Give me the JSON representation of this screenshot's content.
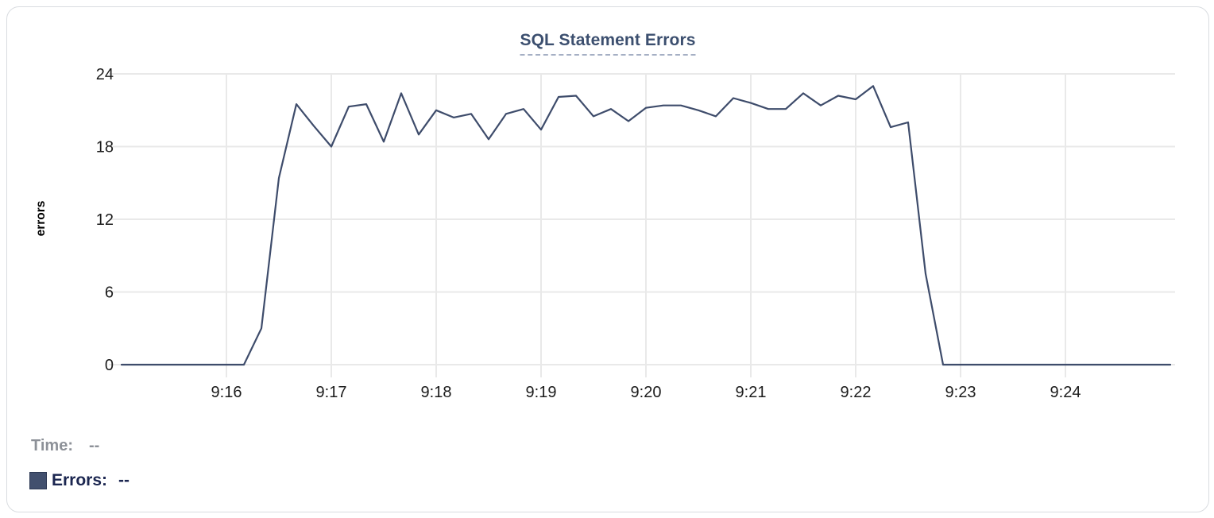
{
  "colors": {
    "line": "#3e4c6b",
    "title": "#3c4f6f",
    "title_dash": "#a5afc4",
    "grid": "#e9e9e9",
    "tick_label": "#1c1c1c",
    "time_label": "#8d9198",
    "errors_label": "#1b2650",
    "swatch": "#42506e",
    "card_border": "#d9dce0"
  },
  "tooltip": {
    "time_label": "Time:",
    "time_value": "--",
    "errors_label": "Errors:",
    "errors_value": "--"
  },
  "chart_data": {
    "type": "line",
    "title": "SQL Statement Errors",
    "xlabel": "",
    "ylabel": "errors",
    "ylim": [
      0,
      24
    ],
    "y_ticks": [
      0,
      6,
      12,
      18,
      24
    ],
    "x_tick_labels": [
      "9:16",
      "9:17",
      "9:18",
      "9:19",
      "9:20",
      "9:21",
      "9:22",
      "9:23",
      "9:24"
    ],
    "x_range": [
      "9:15:00",
      "9:25:00"
    ],
    "grid": true,
    "legend_position": "bottom-left",
    "series": [
      {
        "name": "Errors",
        "color": "#3e4c6b",
        "times": [
          "9:15:00",
          "9:15:10",
          "9:15:20",
          "9:15:30",
          "9:15:40",
          "9:15:50",
          "9:16:00",
          "9:16:10",
          "9:16:20",
          "9:16:30",
          "9:16:40",
          "9:16:50",
          "9:17:00",
          "9:17:10",
          "9:17:20",
          "9:17:30",
          "9:17:40",
          "9:17:50",
          "9:18:00",
          "9:18:10",
          "9:18:20",
          "9:18:30",
          "9:18:40",
          "9:18:50",
          "9:19:00",
          "9:19:10",
          "9:19:20",
          "9:19:30",
          "9:19:40",
          "9:19:50",
          "9:20:00",
          "9:20:10",
          "9:20:20",
          "9:20:30",
          "9:20:40",
          "9:20:50",
          "9:21:00",
          "9:21:10",
          "9:21:20",
          "9:21:30",
          "9:21:40",
          "9:21:50",
          "9:22:00",
          "9:22:10",
          "9:22:20",
          "9:22:30",
          "9:22:40",
          "9:22:50",
          "9:23:00",
          "9:23:10",
          "9:23:20",
          "9:23:30",
          "9:23:40",
          "9:23:50",
          "9:24:00",
          "9:24:10",
          "9:24:20",
          "9:24:30",
          "9:24:40",
          "9:24:50",
          "9:25:00"
        ],
        "values": [
          0,
          0,
          0,
          0,
          0,
          0,
          0,
          0,
          3,
          15.4,
          21.5,
          19.7,
          18,
          21.3,
          21.5,
          18.4,
          22.4,
          19,
          21,
          20.4,
          20.7,
          18.6,
          20.7,
          21.1,
          19.4,
          22.1,
          22.2,
          20.5,
          21.1,
          20.1,
          21.2,
          21.4,
          21.4,
          21,
          20.5,
          22,
          21.6,
          21.1,
          21.1,
          22.4,
          21.4,
          22.2,
          21.9,
          23,
          19.6,
          20,
          7.5,
          0,
          0,
          0,
          0,
          0,
          0,
          0,
          0,
          0,
          0,
          0,
          0,
          0,
          0
        ]
      }
    ]
  }
}
